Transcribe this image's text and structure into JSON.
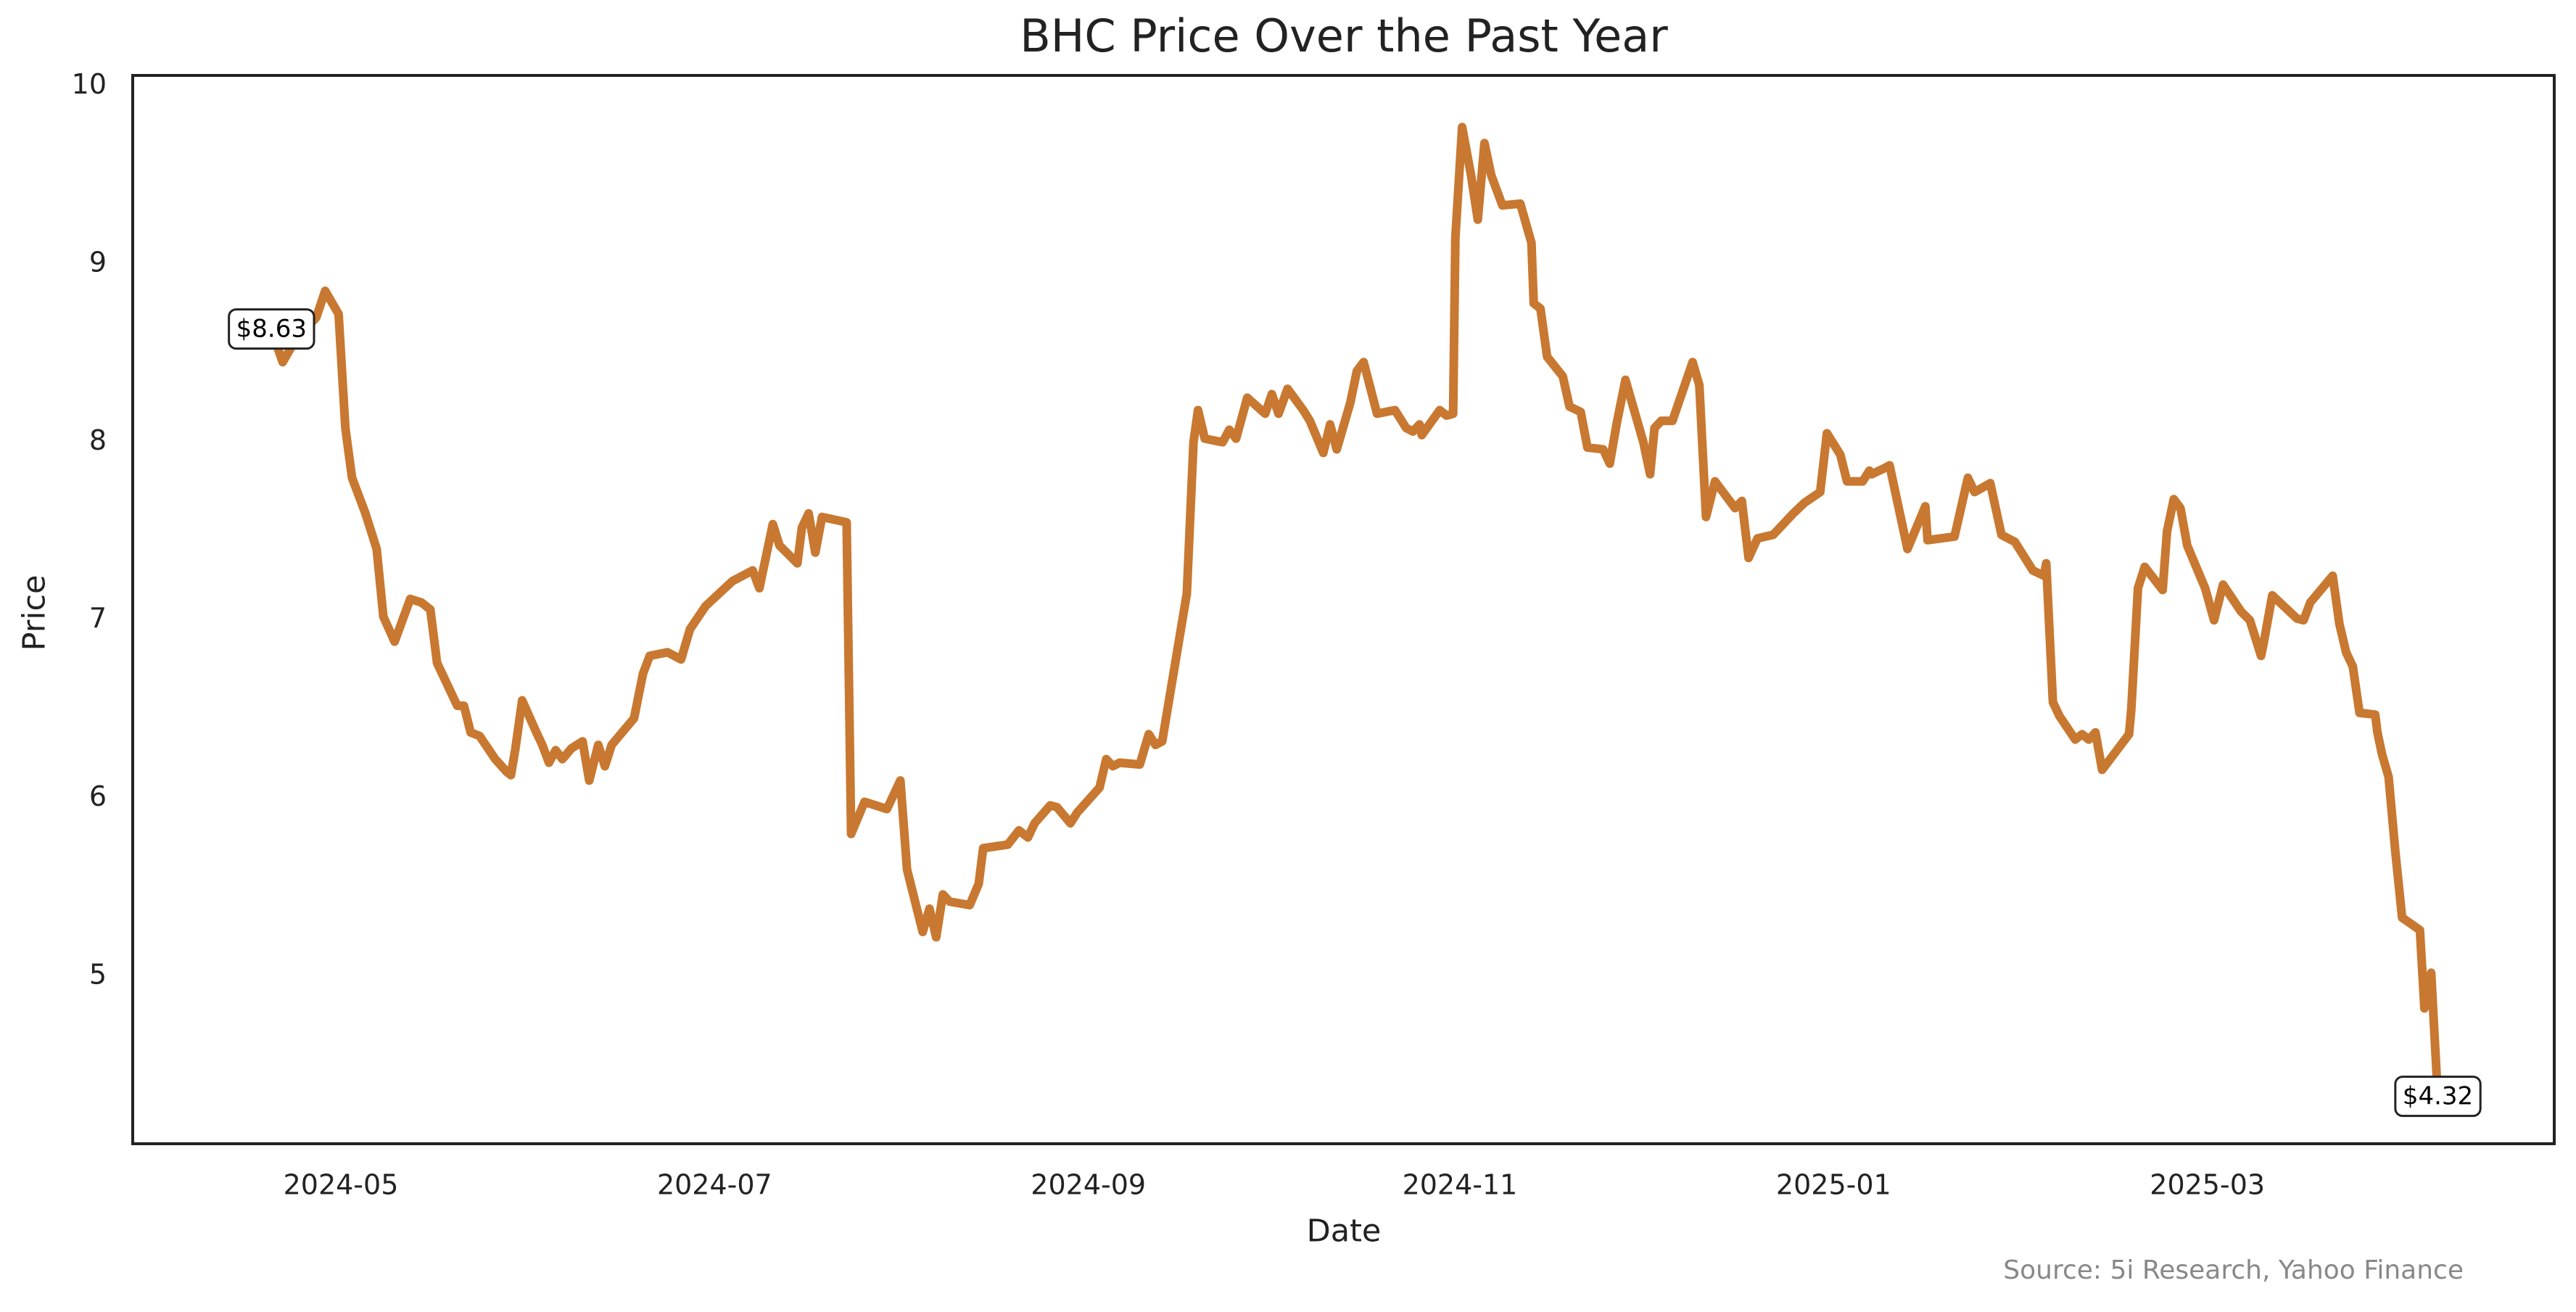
{
  "chart_data": {
    "type": "line",
    "title": "BHC Price Over the Past Year",
    "xlabel": "Date",
    "ylabel": "Price",
    "source": "Source: 5i Research, Yahoo Finance",
    "color": "#c87830",
    "grid": false,
    "xlim": [
      2024.24,
      2025.322
    ],
    "ylim": [
      4.06,
      10.06
    ],
    "xticks": [
      {
        "value": 2024.333,
        "label": "2024-05"
      },
      {
        "value": 2024.5,
        "label": "2024-07"
      },
      {
        "value": 2024.667,
        "label": "2024-09"
      },
      {
        "value": 2024.833,
        "label": "2024-11"
      },
      {
        "value": 2025.0,
        "label": "2025-01"
      },
      {
        "value": 2025.167,
        "label": "2025-03"
      }
    ],
    "yticks": [
      5,
      6,
      7,
      8,
      9,
      10
    ],
    "x": [
      2024.302,
      2024.307,
      2024.313,
      2024.322,
      2024.326,
      2024.332,
      2024.335,
      2024.338,
      2024.344,
      2024.349,
      2024.352,
      2024.357,
      2024.364,
      2024.369,
      2024.373,
      2024.376,
      2024.385,
      2024.388,
      2024.391,
      2024.395,
      2024.402,
      2024.407,
      2024.409,
      2024.411,
      2024.414,
      2024.42,
      2024.423,
      2024.426,
      2024.429,
      2024.432,
      2024.436,
      2024.441,
      2024.444,
      2024.448,
      2024.451,
      2024.454,
      2024.464,
      2024.468,
      2024.471,
      2024.479,
      2024.485,
      2024.489,
      2024.496,
      2024.502,
      2024.508,
      2024.517,
      2024.52,
      2024.526,
      2024.529,
      2024.537,
      2024.539,
      2024.542,
      2024.545,
      2024.548,
      2024.559,
      2024.561,
      2024.567,
      2024.577,
      2024.583,
      2024.586,
      2024.593,
      2024.596,
      2024.599,
      2024.602,
      2024.605,
      2024.614,
      2024.618,
      2024.62,
      2024.631,
      2024.636,
      2024.64,
      2024.643,
      2024.65,
      2024.653,
      2024.659,
      2024.662,
      2024.672,
      2024.675,
      2024.678,
      2024.681,
      2024.69,
      2024.694,
      2024.697,
      2024.7,
      2024.711,
      2024.714,
      2024.716,
      2024.719,
      2024.727,
      2024.73,
      2024.733,
      2024.738,
      2024.746,
      2024.749,
      2024.752,
      2024.756,
      2024.763,
      2024.766,
      2024.772,
      2024.775,
      2024.778,
      2024.784,
      2024.787,
      2024.79,
      2024.796,
      2024.804,
      2024.809,
      2024.812,
      2024.815,
      2024.816,
      2024.824,
      2024.827,
      2024.83,
      2024.831,
      2024.834,
      2024.838,
      2024.841,
      2024.844,
      2024.847,
      2024.852,
      2024.86,
      2024.865,
      2024.866,
      2024.869,
      2024.872,
      2024.879,
      2024.882,
      2024.887,
      2024.89,
      2024.897,
      2024.9,
      2024.903,
      2024.907,
      2024.915,
      2024.918,
      2024.92,
      2024.923,
      2024.928,
      2024.937,
      2024.94,
      2024.943,
      2024.947,
      2024.956,
      2024.959,
      2024.962,
      2024.966,
      2024.973,
      2024.982,
      2024.987,
      2024.994,
      2024.997,
      2025.003,
      2025.006,
      2025.013,
      2025.016,
      2025.017,
      2025.022,
      2025.025,
      2025.033,
      2025.041,
      2025.042,
      2025.054,
      2025.06,
      2025.063,
      2025.07,
      2025.075,
      2025.081,
      2025.089,
      2025.094,
      2025.095,
      2025.098,
      2025.101,
      2025.108,
      2025.111,
      2025.114,
      2025.117,
      2025.12,
      2025.132,
      2025.133,
      2025.136,
      2025.139,
      2025.147,
      2025.149,
      2025.152,
      2025.155,
      2025.158,
      2025.166,
      2025.17,
      2025.174,
      2025.182,
      2025.186,
      2025.191,
      2025.192,
      2025.196,
      2025.207,
      2025.21,
      2025.213,
      2025.223,
      2025.226,
      2025.229,
      2025.232,
      2025.235,
      2025.242,
      2025.243,
      2025.245,
      2025.248,
      2025.251,
      2025.254,
      2025.262,
      2025.264,
      2025.267,
      2025.27
    ],
    "values": [
      8.63,
      8.45,
      8.58,
      8.7,
      8.85,
      8.72,
      8.08,
      7.8,
      7.6,
      7.4,
      7.02,
      6.88,
      7.12,
      7.1,
      7.06,
      6.76,
      6.52,
      6.52,
      6.37,
      6.35,
      6.22,
      6.15,
      6.13,
      6.28,
      6.55,
      6.38,
      6.3,
      6.2,
      6.27,
      6.22,
      6.28,
      6.32,
      6.1,
      6.3,
      6.18,
      6.3,
      6.45,
      6.7,
      6.8,
      6.82,
      6.78,
      6.95,
      7.08,
      7.15,
      7.22,
      7.28,
      7.18,
      7.54,
      7.42,
      7.32,
      7.52,
      7.6,
      7.38,
      7.58,
      7.55,
      5.8,
      5.98,
      5.94,
      6.1,
      5.6,
      5.25,
      5.38,
      5.22,
      5.46,
      5.42,
      5.4,
      5.52,
      5.72,
      5.74,
      5.82,
      5.78,
      5.86,
      5.96,
      5.95,
      5.86,
      5.92,
      6.06,
      6.22,
      6.18,
      6.2,
      6.19,
      6.36,
      6.3,
      6.32,
      7.15,
      8.0,
      8.18,
      8.02,
      8.0,
      8.07,
      8.02,
      8.25,
      8.16,
      8.27,
      8.16,
      8.3,
      8.18,
      8.12,
      7.94,
      8.1,
      7.96,
      8.22,
      8.4,
      8.45,
      8.16,
      8.18,
      8.08,
      8.06,
      8.1,
      8.04,
      8.18,
      8.15,
      8.16,
      9.15,
      9.77,
      9.5,
      9.25,
      9.68,
      9.5,
      9.33,
      9.34,
      9.12,
      8.78,
      8.75,
      8.48,
      8.37,
      8.2,
      8.17,
      7.97,
      7.96,
      7.88,
      8.1,
      8.35,
      8.0,
      7.82,
      8.08,
      8.12,
      8.12,
      8.45,
      8.32,
      7.58,
      7.78,
      7.63,
      7.67,
      7.35,
      7.46,
      7.48,
      7.6,
      7.66,
      7.72,
      8.05,
      7.93,
      7.78,
      7.78,
      7.84,
      7.82,
      7.85,
      7.87,
      7.4,
      7.64,
      7.45,
      7.47,
      7.8,
      7.72,
      7.77,
      7.48,
      7.44,
      7.28,
      7.25,
      7.32,
      6.54,
      6.46,
      6.33,
      6.36,
      6.33,
      6.37,
      6.16,
      6.36,
      6.5,
      7.18,
      7.3,
      7.17,
      7.5,
      7.68,
      7.63,
      7.42,
      7.18,
      7.0,
      7.2,
      7.05,
      7.0,
      6.8,
      6.86,
      7.14,
      7.01,
      7.0,
      7.1,
      7.25,
      6.98,
      6.82,
      6.74,
      6.48,
      6.47,
      6.37,
      6.25,
      6.12,
      5.7,
      5.33,
      5.26,
      4.82,
      5.02,
      4.32
    ],
    "annotations": [
      {
        "x": 2024.302,
        "y": 8.63,
        "label": "$8.63"
      },
      {
        "x": 2025.27,
        "y": 4.32,
        "label": "$4.32"
      }
    ]
  }
}
